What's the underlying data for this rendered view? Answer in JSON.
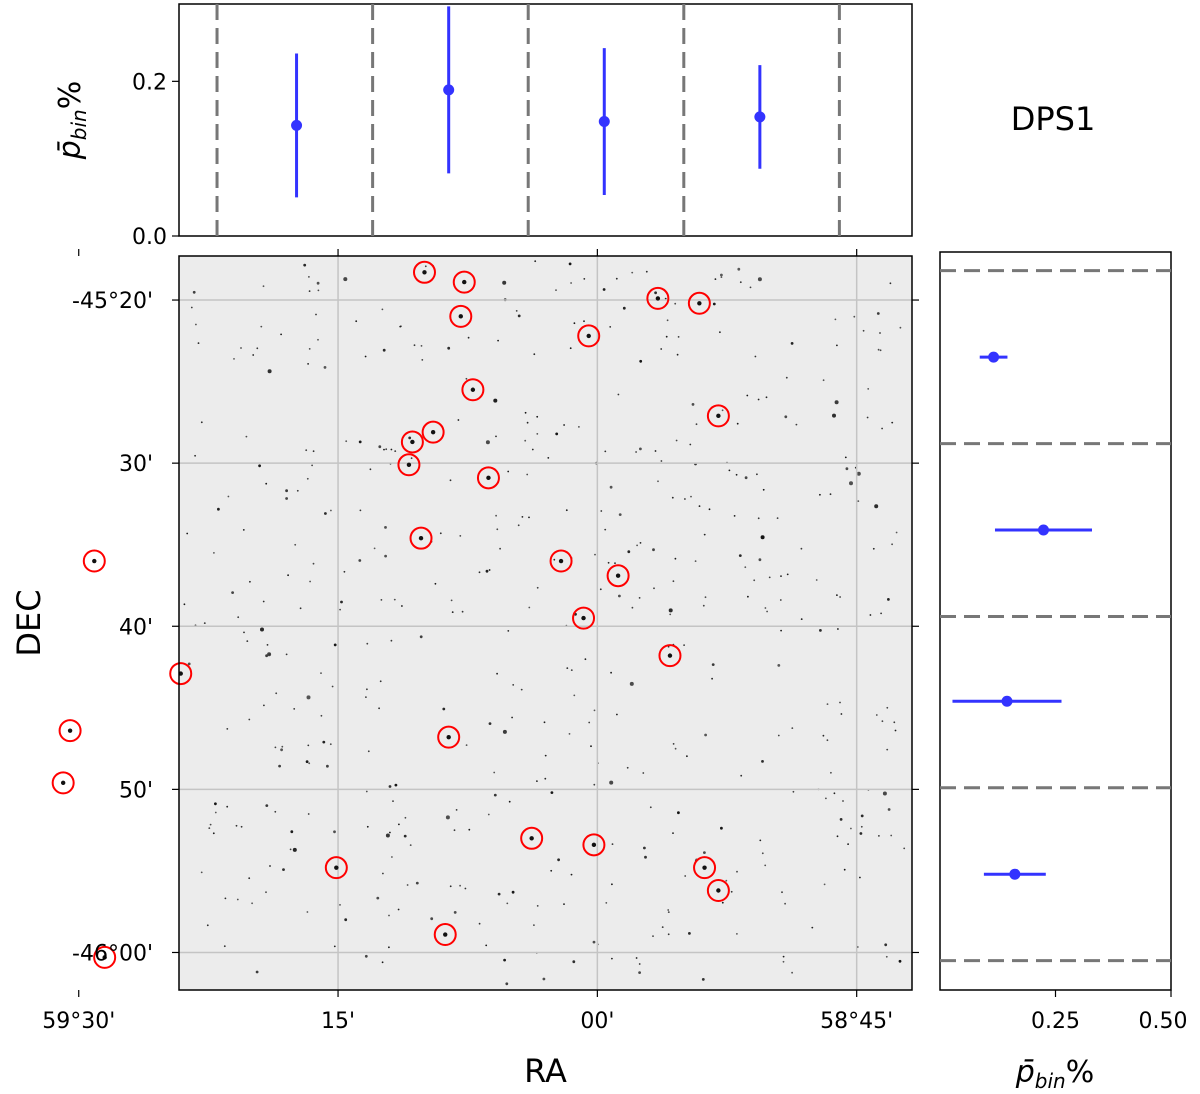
{
  "label": "DPS1",
  "chart_data": [
    {
      "panel": "top",
      "type": "scatter",
      "title": "",
      "xlabel": "",
      "ylabel": "p̄bin%",
      "ylabel_main": "p̄",
      "ylabel_sub": "bin",
      "ylabel_suffix": "%",
      "ylim": [
        0.0,
        0.3
      ],
      "y_ticks": [
        0.0,
        0.2
      ],
      "y_tick_labels": [
        "0.0",
        "0.2"
      ],
      "bin_edges_ra_arcmin": [
        3562,
        3553,
        3544,
        3535,
        3526
      ],
      "points": [
        {
          "x": 3557.4,
          "y": 0.143,
          "yerr": 0.093
        },
        {
          "x": 3548.6,
          "y": 0.189,
          "yerr": 0.108
        },
        {
          "x": 3539.6,
          "y": 0.148,
          "yerr": 0.095
        },
        {
          "x": 3530.6,
          "y": 0.154,
          "yerr": 0.067
        }
      ],
      "color": "#3333ff",
      "grid": false
    },
    {
      "panel": "main",
      "type": "scatter",
      "title": "",
      "xlabel": "RA",
      "ylabel": "DEC",
      "x_unit": "arcmin of RA (degrees × 60)",
      "y_unit": "arcmin of DEC (degrees × 60)",
      "xlim": [
        3564.2,
        3521.8
      ],
      "ylim": [
        -2762.3,
        -2717.3
      ],
      "x_ticks": [
        3570,
        3555,
        3540,
        3525
      ],
      "x_tick_labels": [
        "59°30'",
        "15'",
        "00'",
        "58°45'"
      ],
      "y_ticks": [
        -2720,
        -2730,
        -2740,
        -2750,
        -2760
      ],
      "y_tick_labels": [
        "-45°20'",
        "30'",
        "40'",
        "50'",
        "-46°00'"
      ],
      "grid": true,
      "marker_color": "#ff0000",
      "stars": [
        {
          "ra": 3550.0,
          "dec": -2718.3
        },
        {
          "ra": 3547.7,
          "dec": -2718.9
        },
        {
          "ra": 3547.9,
          "dec": -2721.0
        },
        {
          "ra": 3536.5,
          "dec": -2719.9
        },
        {
          "ra": 3534.1,
          "dec": -2720.2
        },
        {
          "ra": 3540.5,
          "dec": -2722.2
        },
        {
          "ra": 3547.2,
          "dec": -2725.5
        },
        {
          "ra": 3533.0,
          "dec": -2727.1
        },
        {
          "ra": 3549.5,
          "dec": -2728.1
        },
        {
          "ra": 3550.7,
          "dec": -2728.7
        },
        {
          "ra": 3550.9,
          "dec": -2730.1
        },
        {
          "ra": 3546.3,
          "dec": -2730.9
        },
        {
          "ra": 3550.2,
          "dec": -2734.6
        },
        {
          "ra": 3569.1,
          "dec": -2736.0
        },
        {
          "ra": 3542.1,
          "dec": -2736.0
        },
        {
          "ra": 3538.8,
          "dec": -2736.9
        },
        {
          "ra": 3540.8,
          "dec": -2739.5
        },
        {
          "ra": 3535.8,
          "dec": -2741.8
        },
        {
          "ra": 3564.1,
          "dec": -2742.9
        },
        {
          "ra": 3570.5,
          "dec": -2746.4
        },
        {
          "ra": 3548.6,
          "dec": -2746.8
        },
        {
          "ra": 3570.9,
          "dec": -2749.6
        },
        {
          "ra": 3543.8,
          "dec": -2753.0
        },
        {
          "ra": 3540.2,
          "dec": -2753.4
        },
        {
          "ra": 3555.1,
          "dec": -2754.8
        },
        {
          "ra": 3533.8,
          "dec": -2754.8
        },
        {
          "ra": 3533.0,
          "dec": -2756.2
        },
        {
          "ra": 3548.8,
          "dec": -2758.9
        },
        {
          "ra": 3568.5,
          "dec": -2760.3
        }
      ]
    },
    {
      "panel": "right",
      "type": "scatter",
      "title": "",
      "xlabel": "p̄bin%",
      "xlabel_main": "p̄",
      "xlabel_sub": "bin",
      "xlabel_suffix": "%",
      "ylabel": "",
      "xlim": [
        0.0,
        0.5
      ],
      "x_ticks": [
        0.25,
        0.5
      ],
      "x_tick_labels": [
        "0.25",
        "0.50"
      ],
      "bin_edges_dec_arcmin": [
        -2718.2,
        -2728.8,
        -2739.4,
        -2749.9,
        -2760.5
      ],
      "points": [
        {
          "y": -2723.5,
          "x": 0.116,
          "xerr": 0.03
        },
        {
          "y": -2734.1,
          "x": 0.224,
          "xerr": 0.105
        },
        {
          "y": -2744.6,
          "x": 0.145,
          "xerr": 0.118
        },
        {
          "y": -2755.2,
          "x": 0.162,
          "xerr": 0.067
        }
      ],
      "color": "#3333ff",
      "grid": false
    }
  ]
}
